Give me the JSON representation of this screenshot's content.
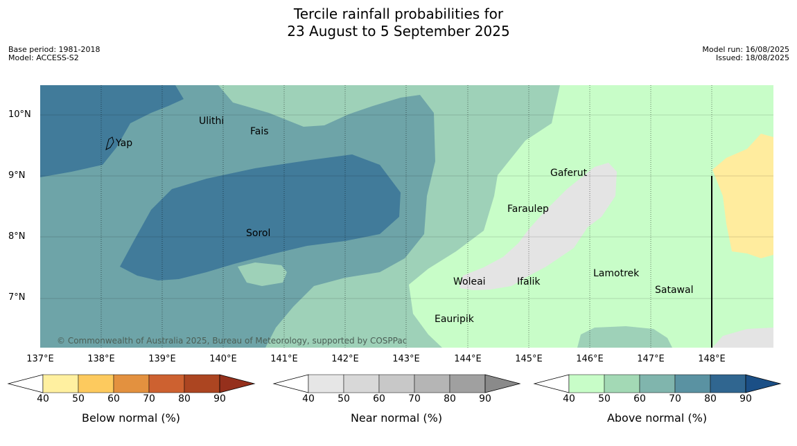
{
  "header": {
    "title_line1": "Tercile rainfall probabilities for",
    "title_line2": "23 August to 5 September 2025",
    "base_period": "Base period: 1981-2018",
    "model": "Model: ACCESS-S2",
    "model_run": "Model run: 16/08/2025",
    "issued": "Issued: 18/08/2025"
  },
  "axes": {
    "lat_labels": [
      "10°N",
      "9°N",
      "8°N",
      "7°N"
    ],
    "lon_labels": [
      "137°E",
      "138°E",
      "139°E",
      "140°E",
      "141°E",
      "142°E",
      "143°E",
      "144°E",
      "145°E",
      "146°E",
      "147°E",
      "148°E"
    ]
  },
  "places": [
    "Ulithi",
    "Fais",
    "Yap",
    "Gaferut",
    "Faraulep",
    "Sorol",
    "Lamotrek",
    "Woleai",
    "Ifalik",
    "Satawal",
    "Eauripik"
  ],
  "copyright": "© Commonwealth of Australia 2025, Bureau of Meteorology, supported by COSPPac",
  "colorbars": {
    "below": {
      "label": "Below normal (%)",
      "ticks": [
        "40",
        "50",
        "60",
        "70",
        "80",
        "90"
      ],
      "colors": [
        "#fff0a0",
        "#fdca5e",
        "#e3913f",
        "#cd6130",
        "#ac4521",
        "#95301c"
      ]
    },
    "near": {
      "label": "Near normal (%)",
      "ticks": [
        "40",
        "50",
        "60",
        "70",
        "80",
        "90"
      ],
      "colors": [
        "#e6e6e6",
        "#d8d8d8",
        "#c8c8c8",
        "#b5b5b5",
        "#a0a0a0",
        "#8a8a8a"
      ]
    },
    "above": {
      "label": "Above normal (%)",
      "ticks": [
        "40",
        "50",
        "60",
        "70",
        "80",
        "90"
      ],
      "colors": [
        "#c8fdc8",
        "#a3d9b5",
        "#80b5ad",
        "#5a92a2",
        "#306690",
        "#1b4f86"
      ]
    }
  },
  "map_colors": {
    "above_40": "#c8fdc8",
    "above_50": "#9ed1b8",
    "above_60": "#6ea4a8",
    "above_70": "#417b9a",
    "near_40": "#e4e4e4",
    "below_40": "#ffec9e"
  }
}
